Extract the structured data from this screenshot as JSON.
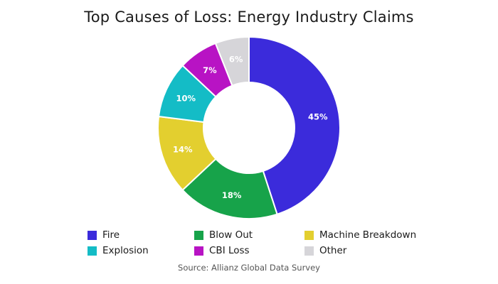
{
  "chart_data": {
    "type": "pie",
    "subtype": "donut",
    "title": "Top Causes of Loss: Energy Industry Claims",
    "source": "Source: Allianz Global Data Survey",
    "slices": [
      {
        "label": "Fire",
        "value": 45,
        "display": "45%",
        "color": "#3b2bdb"
      },
      {
        "label": "Blow Out",
        "value": 18,
        "display": "18%",
        "color": "#17a34a"
      },
      {
        "label": "Machine Breakdown",
        "value": 14,
        "display": "14%",
        "color": "#e3cf2f"
      },
      {
        "label": "Explosion",
        "value": 10,
        "display": "10%",
        "color": "#14bcc6"
      },
      {
        "label": "CBI Loss",
        "value": 7,
        "display": "7%",
        "color": "#b813c4"
      },
      {
        "label": "Other",
        "value": 6,
        "display": "6%",
        "color": "#d6d5d9"
      }
    ],
    "legend": {
      "position": "bottom"
    }
  }
}
